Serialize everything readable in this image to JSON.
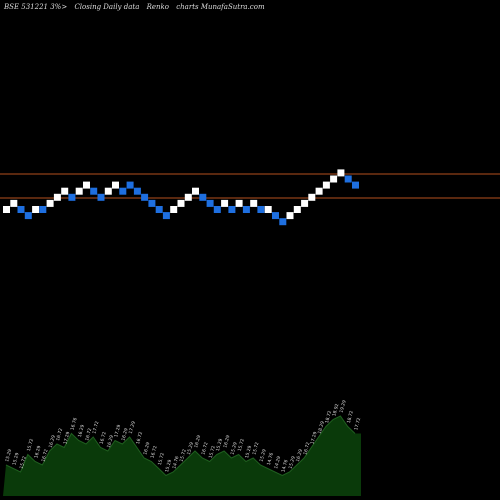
{
  "header": {
    "symbol": "BSE 531221 3%>",
    "type": "Closing Daily data",
    "renko": "Renko",
    "site": "charts MunafaSutra.com"
  },
  "colors": {
    "background": "#000000",
    "up_brick": "#ffffff",
    "down_brick": "#1e6fe0",
    "level_lines": "#b4501e",
    "volume_fill": "#0a3a0a",
    "volume_line": "#d8d8d8"
  },
  "chart_data": [
    {
      "type": "renko",
      "price_levels": [
        15.29,
        16.29
      ],
      "bricks": [
        {
          "dir": "up",
          "level": 0
        },
        {
          "dir": "up",
          "level": 1
        },
        {
          "dir": "down",
          "level": 0
        },
        {
          "dir": "down",
          "level": -1
        },
        {
          "dir": "up",
          "level": 0
        },
        {
          "dir": "down",
          "level": 0
        },
        {
          "dir": "up",
          "level": 1
        },
        {
          "dir": "up",
          "level": 2
        },
        {
          "dir": "up",
          "level": 3
        },
        {
          "dir": "down",
          "level": 2
        },
        {
          "dir": "up",
          "level": 3
        },
        {
          "dir": "up",
          "level": 4
        },
        {
          "dir": "down",
          "level": 3
        },
        {
          "dir": "down",
          "level": 2
        },
        {
          "dir": "up",
          "level": 3
        },
        {
          "dir": "up",
          "level": 4
        },
        {
          "dir": "down",
          "level": 3
        },
        {
          "dir": "down",
          "level": 4
        },
        {
          "dir": "down",
          "level": 3
        },
        {
          "dir": "down",
          "level": 2
        },
        {
          "dir": "down",
          "level": 1
        },
        {
          "dir": "down",
          "level": 0
        },
        {
          "dir": "down",
          "level": -1
        },
        {
          "dir": "up",
          "level": 0
        },
        {
          "dir": "up",
          "level": 1
        },
        {
          "dir": "up",
          "level": 2
        },
        {
          "dir": "up",
          "level": 3
        },
        {
          "dir": "down",
          "level": 2
        },
        {
          "dir": "down",
          "level": 1
        },
        {
          "dir": "down",
          "level": 0
        },
        {
          "dir": "up",
          "level": 1
        },
        {
          "dir": "down",
          "level": 0
        },
        {
          "dir": "up",
          "level": 1
        },
        {
          "dir": "down",
          "level": 0
        },
        {
          "dir": "up",
          "level": 1
        },
        {
          "dir": "down",
          "level": 0
        },
        {
          "dir": "up",
          "level": 0
        },
        {
          "dir": "down",
          "level": -1
        },
        {
          "dir": "down",
          "level": -2
        },
        {
          "dir": "up",
          "level": -1
        },
        {
          "dir": "up",
          "level": 0
        },
        {
          "dir": "up",
          "level": 1
        },
        {
          "dir": "up",
          "level": 2
        },
        {
          "dir": "up",
          "level": 3
        },
        {
          "dir": "up",
          "level": 4
        },
        {
          "dir": "up",
          "level": 5
        },
        {
          "dir": "up",
          "level": 6
        },
        {
          "dir": "down",
          "level": 5
        },
        {
          "dir": "down",
          "level": 4
        }
      ]
    },
    {
      "type": "area",
      "name": "volume",
      "values": [
        0.3,
        0.25,
        0.2,
        0.45,
        0.35,
        0.3,
        0.5,
        0.6,
        0.55,
        0.75,
        0.65,
        0.6,
        0.7,
        0.55,
        0.5,
        0.65,
        0.6,
        0.7,
        0.55,
        0.4,
        0.35,
        0.25,
        0.15,
        0.2,
        0.3,
        0.4,
        0.5,
        0.4,
        0.35,
        0.45,
        0.5,
        0.4,
        0.45,
        0.35,
        0.4,
        0.3,
        0.25,
        0.2,
        0.15,
        0.2,
        0.3,
        0.4,
        0.55,
        0.7,
        0.85,
        0.95,
        1.0,
        0.85,
        0.75
      ],
      "labels": [
        "15.29",
        "15.29",
        "15.72",
        "15.72",
        "16.29",
        "16.72",
        "16.29",
        "16.72",
        "17.29",
        "16.76",
        "16.29",
        "16.72",
        "17.72",
        "16.72",
        "16.29",
        "17.29",
        "16.29",
        "17.29",
        "16.72",
        "16.29",
        "16.72",
        "15.72",
        "15.29",
        "14.76",
        "15.72",
        "15.29",
        "16.29",
        "16.72",
        "15.72",
        "15.29",
        "16.29",
        "15.29",
        "15.72",
        "15.29",
        "15.72",
        "15.29",
        "14.76",
        "14.29",
        "14.76",
        "15.29",
        "16.29",
        "16.72",
        "17.29",
        "18.29",
        "18.72",
        "18.92",
        "19.29",
        "18.72",
        "17.72"
      ]
    }
  ]
}
